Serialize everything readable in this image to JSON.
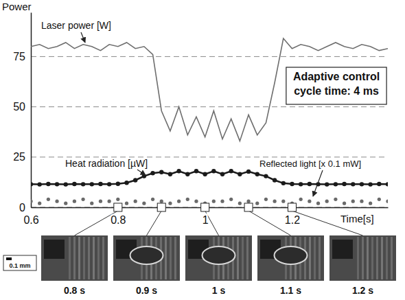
{
  "chart_data": {
    "type": "line",
    "y_label": "Power",
    "x_label": "Time[s]",
    "x": [
      0.6,
      0.62,
      0.64,
      0.66,
      0.68,
      0.7,
      0.72,
      0.74,
      0.76,
      0.78,
      0.8,
      0.82,
      0.84,
      0.86,
      0.88,
      0.9,
      0.92,
      0.94,
      0.96,
      0.98,
      1.0,
      1.02,
      1.04,
      1.06,
      1.08,
      1.1,
      1.12,
      1.14,
      1.16,
      1.18,
      1.2,
      1.22,
      1.24,
      1.26,
      1.28,
      1.3,
      1.32,
      1.34,
      1.36,
      1.38,
      1.4,
      1.42
    ],
    "xlim": [
      0.6,
      1.42
    ],
    "xticks": [
      0.6,
      0.8,
      1,
      1.2
    ],
    "ylim": [
      0,
      97
    ],
    "yticks": [
      0,
      25,
      50,
      75
    ],
    "grid": true,
    "series": [
      {
        "name": "Laser power [W]",
        "type": "line",
        "color": "#6e6e6e",
        "values": [
          80,
          81,
          79,
          80,
          82,
          79,
          81,
          80,
          78,
          81,
          80,
          82,
          79,
          80,
          76,
          48,
          38,
          50,
          36,
          45,
          35,
          48,
          34,
          44,
          33,
          46,
          36,
          42,
          62,
          84,
          79,
          81,
          80,
          78,
          80,
          82,
          80,
          79,
          81,
          80,
          78,
          79
        ]
      },
      {
        "name": "Heat radiation [µW]",
        "type": "line",
        "marker": "circle",
        "color": "#1a1a1a",
        "values": [
          11.5,
          11.4,
          11.6,
          11.5,
          11.4,
          11.6,
          11.5,
          11.5,
          11.6,
          11.5,
          11.7,
          12.2,
          13.5,
          15.5,
          17,
          17.5,
          16.5,
          18,
          16.5,
          18,
          16.5,
          18,
          16.5,
          18,
          16.5,
          17.8,
          16.5,
          15.5,
          13.5,
          12,
          11.6,
          11.5,
          11.6,
          11.5,
          11.4,
          11.5,
          11.6,
          11.5,
          11.5,
          11.4,
          11.6,
          11.5
        ]
      },
      {
        "name": "Reflected light [x 0.1 mW]",
        "type": "scatter",
        "marker": "circle",
        "color": "#6a6a6a",
        "values": [
          3,
          2,
          4,
          3,
          2,
          3,
          4,
          2,
          3,
          3,
          4,
          2,
          3,
          2,
          4,
          3,
          2,
          3,
          4,
          3,
          2,
          3,
          3,
          4,
          2,
          3,
          2,
          4,
          3,
          3,
          2,
          4,
          3,
          2,
          3,
          4,
          2,
          3,
          3,
          2,
          4,
          3
        ]
      }
    ],
    "annotations": [
      "Adaptive control",
      "cycle time: 4 ms"
    ],
    "frames": [
      {
        "time": 0.8,
        "label": "0.8 s"
      },
      {
        "time": 0.9,
        "label": "0.9 s"
      },
      {
        "time": 1,
        "label": "1 s"
      },
      {
        "time": 1.1,
        "label": "1.1 s"
      },
      {
        "time": 1.2,
        "label": "1.2 s"
      }
    ],
    "scale_bar": "0.1 mm"
  }
}
